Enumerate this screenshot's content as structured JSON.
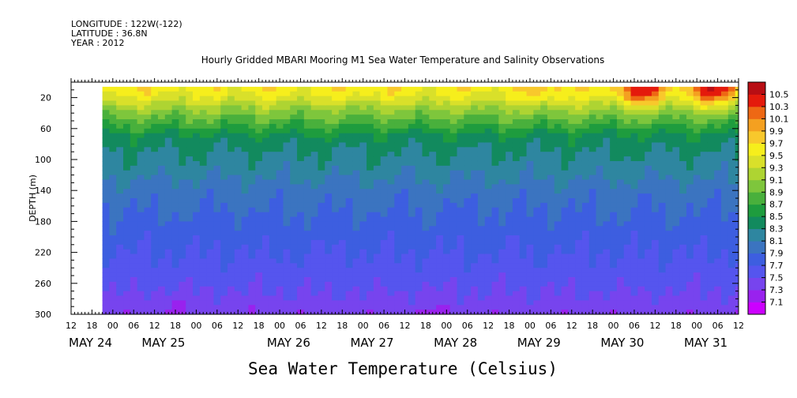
{
  "header": {
    "longitude": "LONGITUDE : 122W(-122)",
    "latitude": "LATITUDE : 36.8N",
    "year": "YEAR : 2012"
  },
  "chart_data": {
    "type": "heatmap",
    "title": "Hourly Gridded MBARI Mooring M1 Sea Water Temperature and Salinity Observations",
    "footer_label": "Sea Water Temperature (Celsius)",
    "ylabel": "DEPTH (m)",
    "y_reversed": true,
    "ylim": [
      300,
      0
    ],
    "y_ticks": [
      20,
      60,
      100,
      140,
      180,
      220,
      260,
      300
    ],
    "x_hour_labels": [
      "12",
      "18",
      "00",
      "06",
      "12",
      "18",
      "00",
      "06",
      "12",
      "18",
      "00",
      "06",
      "12",
      "18",
      "00",
      "06",
      "12",
      "18",
      "00",
      "06",
      "12",
      "18",
      "00",
      "06",
      "12",
      "18",
      "00",
      "06",
      "12",
      "18",
      "00",
      "06",
      "12"
    ],
    "x_date_labels": [
      {
        "label": "MAY 24",
        "hour": 0
      },
      {
        "label": "MAY 25",
        "hour": 21
      },
      {
        "label": "MAY 26",
        "hour": 57
      },
      {
        "label": "MAY 27",
        "hour": 81
      },
      {
        "label": "MAY 28",
        "hour": 105
      },
      {
        "label": "MAY 29",
        "hour": 129
      },
      {
        "label": "MAY 30",
        "hour": 153
      },
      {
        "label": "MAY 31",
        "hour": 177
      }
    ],
    "x_range_hours": [
      0,
      192
    ],
    "data_start_hour": 9,
    "colorbar_levels": [
      7.1,
      7.3,
      7.5,
      7.7,
      7.9,
      8.1,
      8.3,
      8.5,
      8.7,
      8.9,
      9.1,
      9.3,
      9.5,
      9.7,
      9.9,
      10.1,
      10.3,
      10.5
    ],
    "colorbar_colors": [
      "#cc00ff",
      "#9922ee",
      "#7744ee",
      "#5555ee",
      "#3d5ee0",
      "#3b74c0",
      "#2e86a0",
      "#128a5e",
      "#1e9c3e",
      "#49b03c",
      "#7ec63c",
      "#aed432",
      "#d9e02a",
      "#f6ee1c",
      "#f8c82c",
      "#f4a020",
      "#ee6814",
      "#e41a0c",
      "#b80e14"
    ],
    "depth_profile": [
      {
        "depth": 8,
        "value": 9.6
      },
      {
        "depth": 20,
        "value": 9.45
      },
      {
        "depth": 35,
        "value": 9.1
      },
      {
        "depth": 55,
        "value": 8.75
      },
      {
        "depth": 70,
        "value": 8.45
      },
      {
        "depth": 90,
        "value": 8.3
      },
      {
        "depth": 110,
        "value": 8.2
      },
      {
        "depth": 140,
        "value": 8.0
      },
      {
        "depth": 180,
        "value": 7.85
      },
      {
        "depth": 220,
        "value": 7.7
      },
      {
        "depth": 260,
        "value": 7.55
      },
      {
        "depth": 300,
        "value": 7.35
      }
    ],
    "warm_events": [
      {
        "hour": 14,
        "depth": 8,
        "value": 9.7
      },
      {
        "hour": 85,
        "depth": 8,
        "value": 9.7
      },
      {
        "hour": 136,
        "depth": 12,
        "value": 9.8
      },
      {
        "hour": 164,
        "depth": 10,
        "value": 10.4
      },
      {
        "hour": 185,
        "depth": 8,
        "value": 10.5
      }
    ],
    "cold_spots": [
      {
        "hour": 30,
        "depth": 295,
        "value": 7.2
      },
      {
        "hour": 55,
        "depth": 295,
        "value": 7.3
      },
      {
        "hour": 105,
        "depth": 295,
        "value": 7.25
      }
    ]
  }
}
